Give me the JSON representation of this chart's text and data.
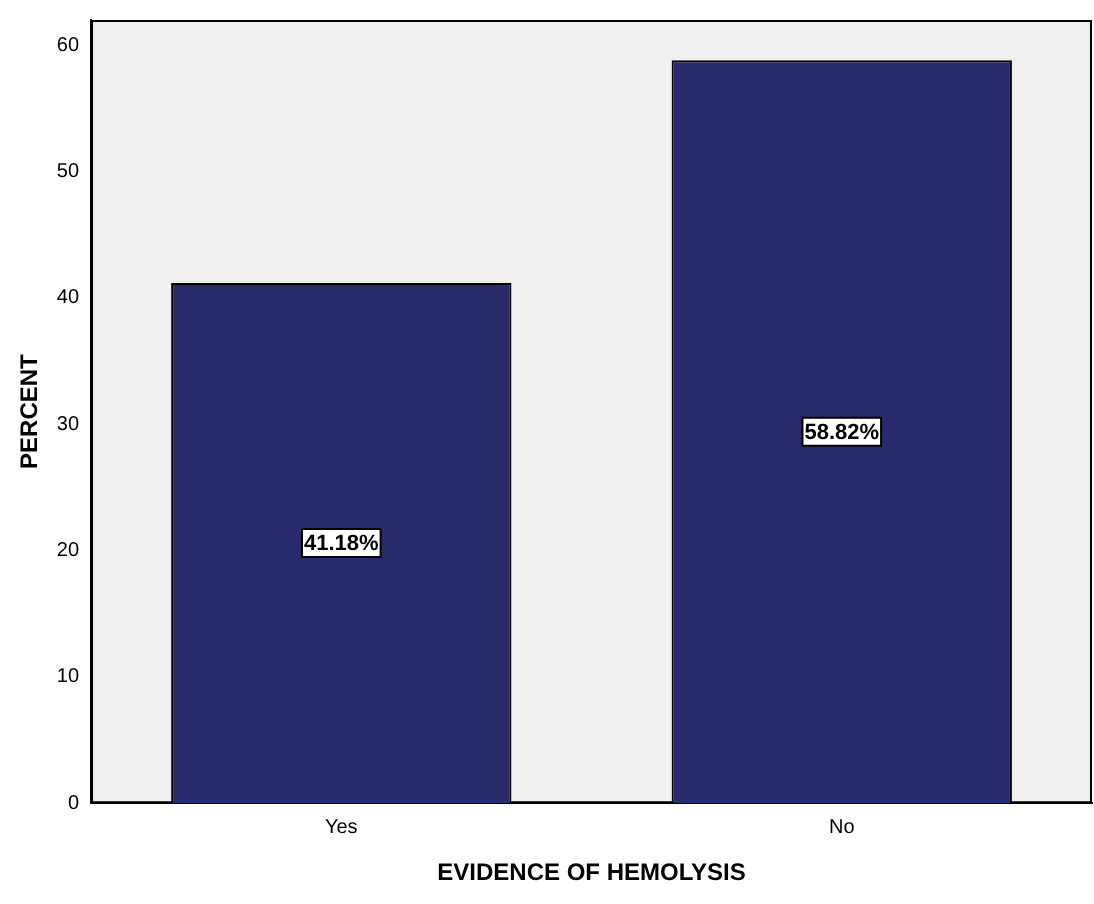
{
  "chart_data": {
    "type": "bar",
    "xlabel": "EVIDENCE OF HEMOLYSIS",
    "ylabel": "PERCENT",
    "categories": [
      "Yes",
      "No"
    ],
    "values": [
      41.18,
      58.82
    ],
    "value_labels": [
      "41.18%",
      "58.82%"
    ],
    "color": "#272b6b",
    "ylim": [
      0,
      62
    ],
    "yticks": [
      0,
      10,
      20,
      30,
      40,
      50,
      60
    ],
    "grid": false,
    "legend": false
  }
}
